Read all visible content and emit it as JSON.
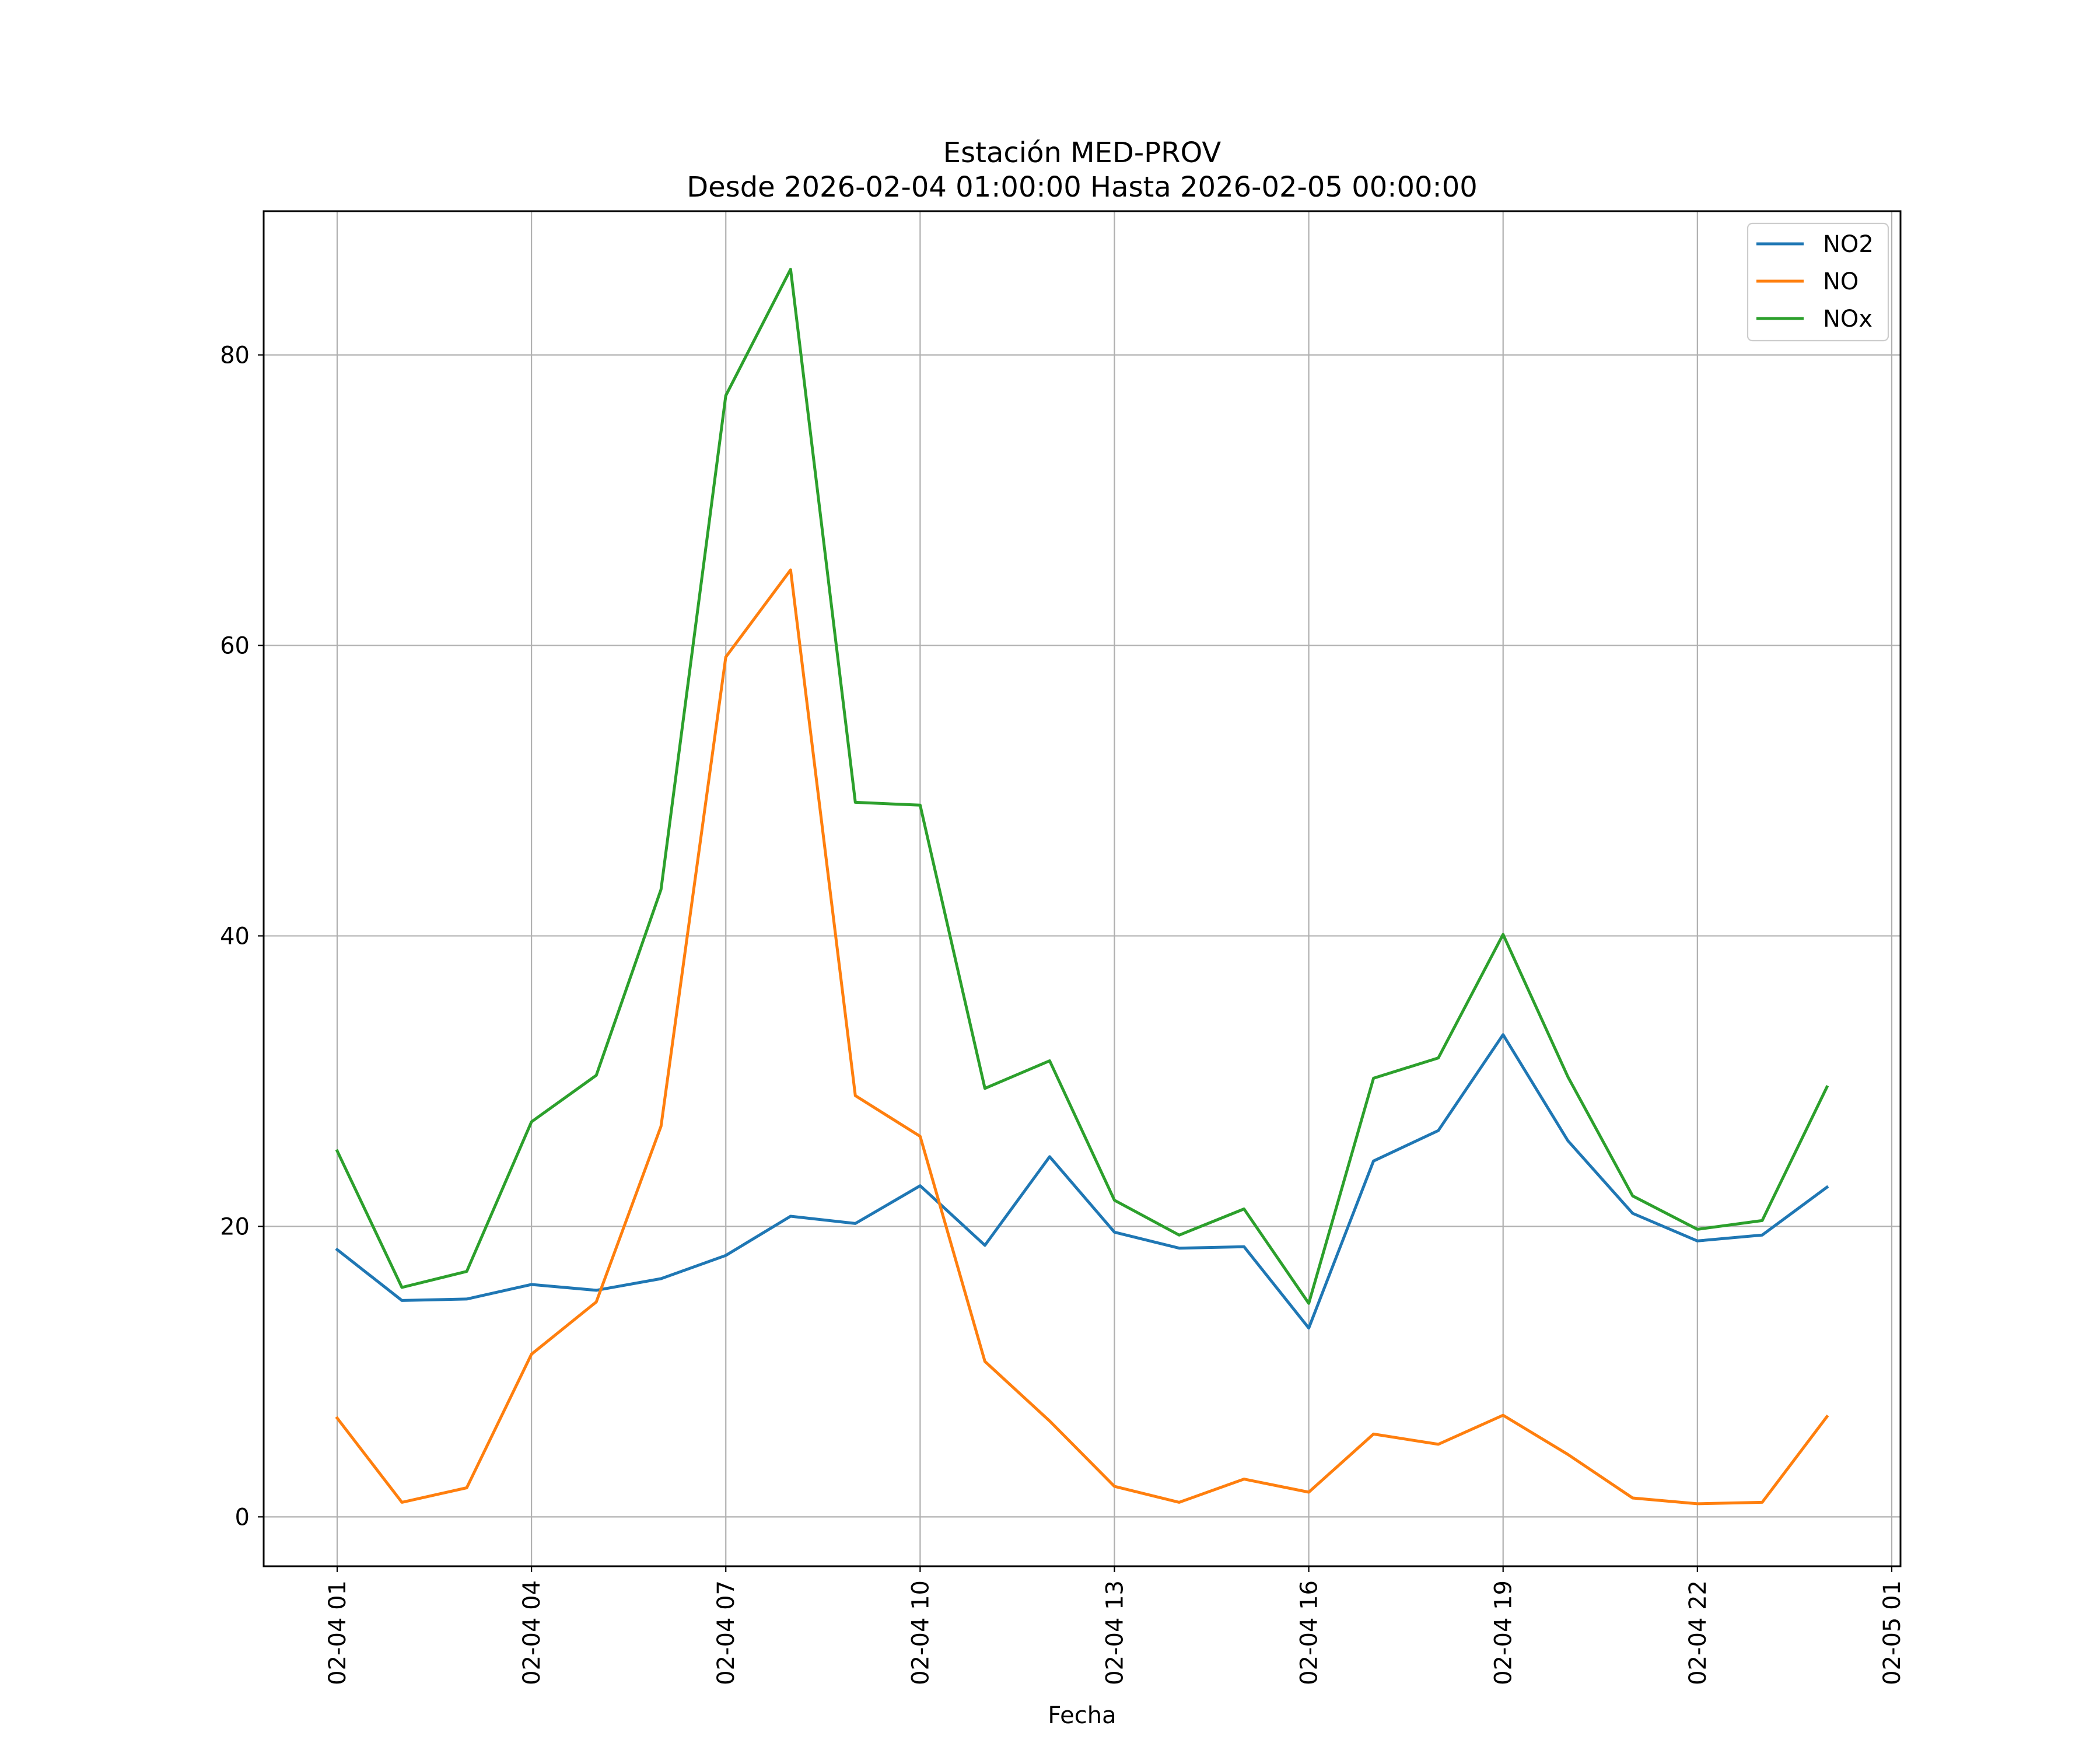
{
  "chart_data": {
    "type": "line",
    "title": "Estación MED-PROV",
    "subtitle": "Desde 2026-02-04 01:00:00 Hasta 2026-02-05 00:00:00",
    "xlabel": "Fecha",
    "ylabel": "",
    "x": [
      "02-04 01",
      "02-04 02",
      "02-04 03",
      "02-04 04",
      "02-04 05",
      "02-04 06",
      "02-04 07",
      "02-04 08",
      "02-04 09",
      "02-04 10",
      "02-04 11",
      "02-04 12",
      "02-04 13",
      "02-04 14",
      "02-04 15",
      "02-04 16",
      "02-04 17",
      "02-04 18",
      "02-04 19",
      "02-04 20",
      "02-04 21",
      "02-04 22",
      "02-04 23",
      "02-05 00"
    ],
    "x_ticks": [
      "02-04 01",
      "02-04 04",
      "02-04 07",
      "02-04 10",
      "02-04 13",
      "02-04 16",
      "02-04 19",
      "02-04 22",
      "02-05 01"
    ],
    "y_ticks": [
      0,
      20,
      40,
      60,
      80
    ],
    "ylim": [
      -3.4,
      89.9
    ],
    "xlim": [
      "02-04 00:00",
      "02-05 01:00"
    ],
    "grid": true,
    "legend_position": "top-right",
    "series": [
      {
        "name": "NO2",
        "color": "#1f77b4",
        "values": [
          18.4,
          14.9,
          15.0,
          16.0,
          15.6,
          16.4,
          18.0,
          20.7,
          20.2,
          22.8,
          18.7,
          24.8,
          19.6,
          18.5,
          18.6,
          13.0,
          24.5,
          26.6,
          33.2,
          25.9,
          20.9,
          19.0,
          19.4,
          22.7
        ]
      },
      {
        "name": "NO",
        "color": "#ff7f0e",
        "values": [
          6.8,
          1.0,
          2.0,
          11.2,
          14.8,
          26.9,
          59.2,
          65.2,
          29.0,
          26.2,
          10.7,
          6.6,
          2.1,
          1.0,
          2.6,
          1.7,
          5.7,
          5.0,
          7.0,
          4.3,
          1.3,
          0.9,
          1.0,
          6.9
        ]
      },
      {
        "name": "NOx",
        "color": "#2ca02c",
        "values": [
          25.2,
          15.8,
          16.9,
          27.2,
          30.4,
          43.2,
          77.2,
          85.9,
          49.2,
          49.0,
          29.5,
          31.4,
          21.8,
          19.4,
          21.2,
          14.7,
          30.2,
          31.6,
          40.1,
          30.3,
          22.1,
          19.8,
          20.4,
          29.6
        ]
      }
    ]
  }
}
